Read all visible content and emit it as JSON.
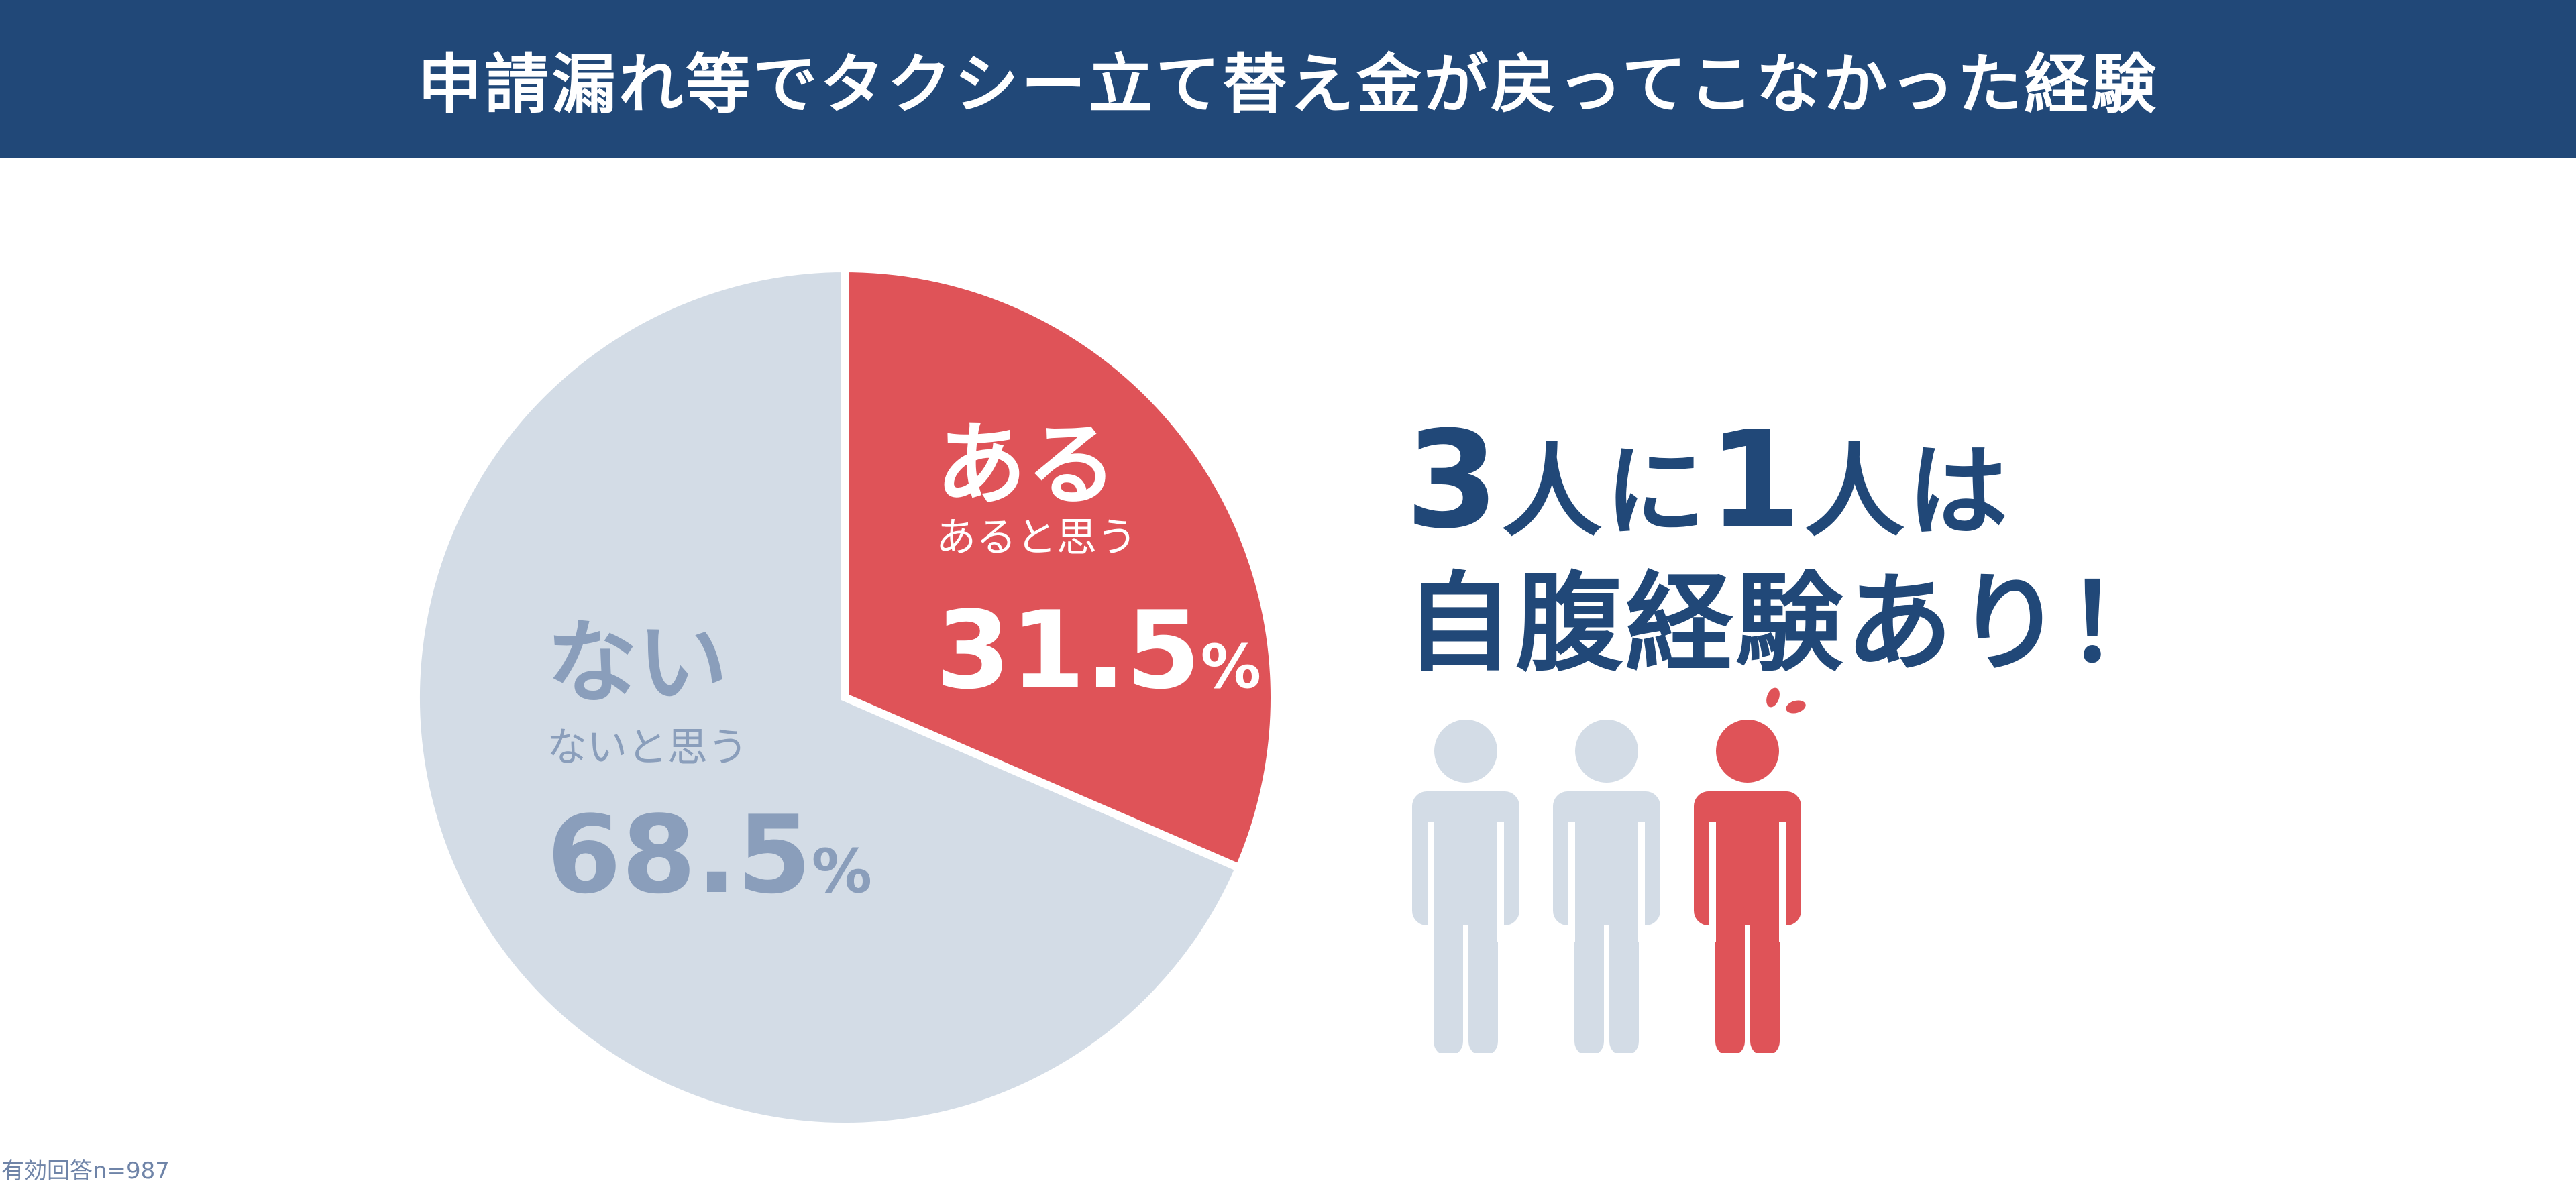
{
  "header": {
    "title": "申請漏れ等でタクシー立て替え金が戻ってこなかった経験"
  },
  "chart_data": {
    "type": "pie",
    "title": "申請漏れ等でタクシー立て替え金が戻ってこなかった経験",
    "slices": [
      {
        "label": "ある",
        "sublabel": "あると思う",
        "value": 31.5,
        "value_text": "31.5",
        "unit": "%",
        "color": "#df5358",
        "label_color": "#ffffff"
      },
      {
        "label": "ない",
        "sublabel": "ないと思う",
        "value": 68.5,
        "value_text": "68.5",
        "unit": "%",
        "color": "#d3dce6",
        "label_color": "#8a9ebb"
      }
    ],
    "start_angle": "12 o'clock",
    "direction": "clockwise"
  },
  "headline": {
    "num1": "3",
    "part1": "人に",
    "num2": "1",
    "part2": "人は",
    "line2": "自腹経験あり！"
  },
  "people_icons": [
    {
      "name": "person-icon-1",
      "color": "#d3dce6"
    },
    {
      "name": "person-icon-2",
      "color": "#d3dce6"
    },
    {
      "name": "person-icon-3",
      "color": "#df5358",
      "highlight": true
    }
  ],
  "footnote": "有効回答n=987",
  "colors": {
    "header": "#214878",
    "accent": "#df5358",
    "muted": "#d3dce6",
    "headline": "#214878"
  }
}
